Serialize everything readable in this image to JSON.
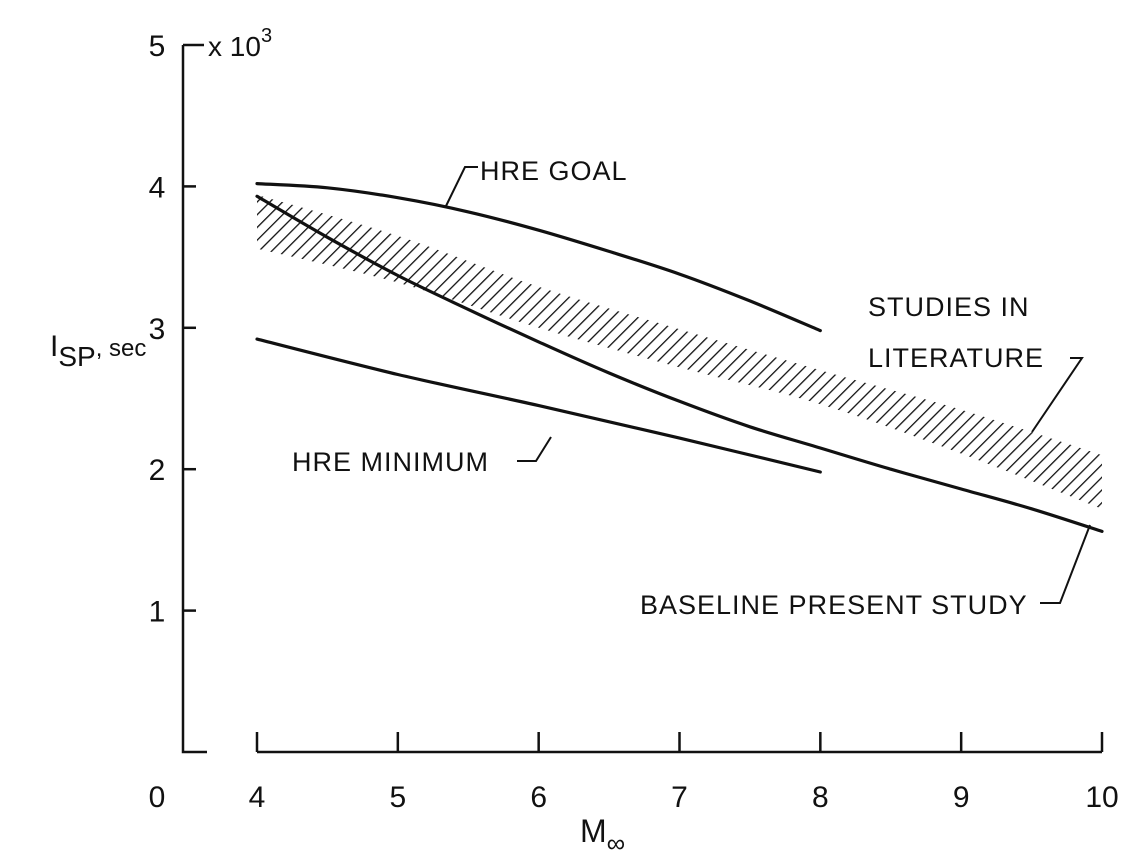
{
  "chart_data": {
    "type": "line",
    "xlabel_main": "M",
    "xlabel_sub": "∞",
    "ylabel_main": "I",
    "ylabel_sub": "SP",
    "ylabel_unit": ", sec",
    "y_multiplier": "x 10",
    "y_multiplier_exp": "3",
    "y_origin_label": "0",
    "xlim": [
      4,
      10
    ],
    "ylim": [
      0,
      5000
    ],
    "x_ticks": [
      4,
      5,
      6,
      7,
      8,
      9,
      10
    ],
    "x_tick_labels": [
      "4",
      "5",
      "6",
      "7",
      "8",
      "9",
      "10"
    ],
    "y_ticks": [
      1000,
      2000,
      3000,
      4000,
      5000
    ],
    "y_tick_labels": [
      "1",
      "2",
      "3",
      "4",
      "5"
    ],
    "grid": false,
    "series": [
      {
        "name": "HRE GOAL",
        "x": [
          4,
          4.5,
          5,
          5.5,
          6,
          6.5,
          7,
          7.5,
          8
        ],
        "y": [
          4020,
          3990,
          3920,
          3820,
          3690,
          3540,
          3380,
          3190,
          2980
        ]
      },
      {
        "name": "HRE MINIMUM",
        "x": [
          4,
          5,
          6,
          7,
          8
        ],
        "y": [
          2920,
          2670,
          2450,
          2220,
          1980
        ]
      },
      {
        "name": "BASELINE PRESENT STUDY",
        "x": [
          4,
          4.5,
          5,
          5.5,
          6,
          6.5,
          7,
          7.5,
          8,
          8.5,
          9,
          9.5,
          10
        ],
        "y": [
          3930,
          3640,
          3370,
          3130,
          2900,
          2680,
          2480,
          2300,
          2150,
          2000,
          1860,
          1720,
          1560
        ]
      },
      {
        "name": "STUDIES IN LITERATURE",
        "type": "band",
        "x": [
          4,
          5,
          6,
          7,
          8,
          9,
          10
        ],
        "y_low": [
          3560,
          3320,
          3000,
          2720,
          2460,
          2110,
          1720
        ],
        "y_high": [
          3940,
          3650,
          3290,
          2990,
          2700,
          2420,
          2100
        ]
      }
    ]
  },
  "annotations": {
    "goal": "HRE GOAL",
    "minimum": "HRE MINIMUM",
    "literature_line1": "STUDIES IN",
    "literature_line2": "LITERATURE",
    "baseline": "BASELINE PRESENT STUDY"
  }
}
